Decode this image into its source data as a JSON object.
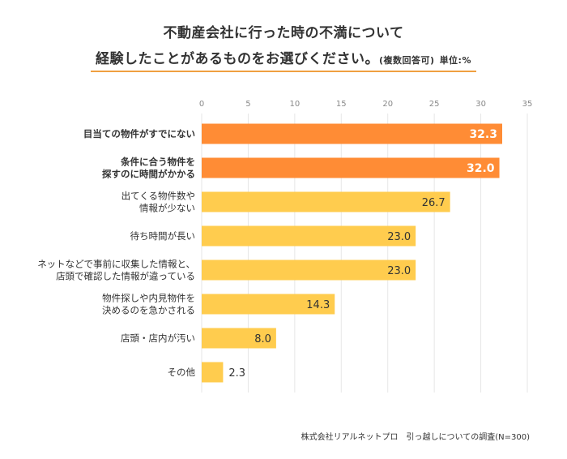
{
  "title": {
    "line1": "不動産会社に行った時の不満について",
    "line2": "経験したことがあるものをお選びください。",
    "note": "(複数回答可)",
    "unit": "単位:%"
  },
  "source": "株式会社リアルネットプロ　引っ越しについての調査(N=300)",
  "colors": {
    "highlight": "#ff8c35",
    "normal": "#ffcc4e",
    "highlight_label": "#ffffff",
    "normal_label": "#333333",
    "grid": "#e6e6e6",
    "tick": "#888888",
    "underline": "#f0a040"
  },
  "chart_data": {
    "type": "bar",
    "orientation": "horizontal",
    "categories": [
      [
        "目当ての物件がすでにない"
      ],
      [
        "条件に合う物件を",
        "探すのに時間がかかる"
      ],
      [
        "出てくる物件数や",
        "情報が少ない"
      ],
      [
        "待ち時間が長い"
      ],
      [
        "ネットなどで事前に収集した情報と、",
        "店頭で確認した情報が違っている"
      ],
      [
        "物件探しや内見物件を",
        "決めるのを急かされる"
      ],
      [
        "店頭・店内が汚い"
      ],
      [
        "その他"
      ]
    ],
    "values": [
      32.3,
      32.0,
      26.7,
      23.0,
      23.0,
      14.3,
      8.0,
      2.3
    ],
    "value_labels": [
      "32.3",
      "32.0",
      "26.7",
      "23.0",
      "23.0",
      "14.3",
      "8.0",
      "2.3"
    ],
    "highlight": [
      true,
      true,
      false,
      false,
      false,
      false,
      false,
      false
    ],
    "xlim": [
      0,
      35
    ],
    "xticks": [
      0,
      5,
      10,
      15,
      20,
      25,
      30,
      35
    ],
    "grid": true,
    "xlabel": "",
    "ylabel": ""
  }
}
